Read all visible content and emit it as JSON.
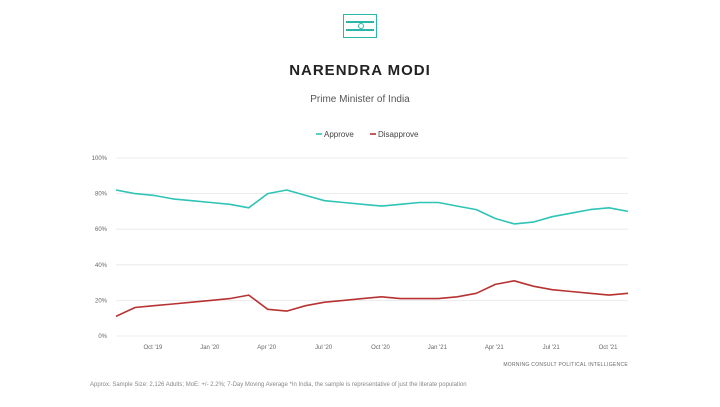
{
  "header": {
    "flag_icon": "india-flag-icon",
    "title": "NARENDRA MODI",
    "subtitle": "Prime Minister of India"
  },
  "colors": {
    "approve": "#2ec4b6",
    "disapprove": "#b83232"
  },
  "footer": {
    "source": "MORNING CONSULT POLITICAL INTELLIGENCE",
    "note": "Approx. Sample Size: 2,126 Adults; MoE: +/- 2.2%; 7-Day Moving Average *In India, the sample is representative of just the literate population"
  },
  "chart_data": {
    "type": "line",
    "title": "NARENDRA MODI",
    "subtitle": "Prime Minister of India",
    "xlabel": "",
    "ylabel": "",
    "ylim": [
      0,
      100
    ],
    "y_ticks": [
      "0%",
      "20%",
      "40%",
      "60%",
      "80%",
      "100%"
    ],
    "x_ticks": [
      "Oct '19",
      "Jan '20",
      "Apr '20",
      "Jul '20",
      "Oct '20",
      "Jan '21",
      "Apr '21",
      "Jul '21",
      "Oct '21"
    ],
    "x": [
      "Aug '19",
      "Sep '19",
      "Oct '19",
      "Nov '19",
      "Dec '19",
      "Jan '20",
      "Feb '20",
      "Mar '20",
      "Apr '20",
      "May '20",
      "Jun '20",
      "Jul '20",
      "Aug '20",
      "Sep '20",
      "Oct '20",
      "Nov '20",
      "Dec '20",
      "Jan '21",
      "Feb '21",
      "Mar '21",
      "Apr '21",
      "May '21",
      "Jun '21",
      "Jul '21",
      "Aug '21",
      "Sep '21",
      "Oct '21",
      "Nov '21"
    ],
    "grid": true,
    "legend": "top-center",
    "series": [
      {
        "name": "Approve",
        "values": [
          82,
          80,
          79,
          77,
          76,
          75,
          74,
          72,
          80,
          82,
          79,
          76,
          75,
          74,
          73,
          74,
          75,
          75,
          73,
          71,
          66,
          63,
          64,
          67,
          69,
          71,
          72,
          70
        ]
      },
      {
        "name": "Disapprove",
        "values": [
          11,
          16,
          17,
          18,
          19,
          20,
          21,
          23,
          15,
          14,
          17,
          19,
          20,
          21,
          22,
          21,
          21,
          21,
          22,
          24,
          29,
          31,
          28,
          26,
          25,
          24,
          23,
          24
        ]
      }
    ]
  }
}
